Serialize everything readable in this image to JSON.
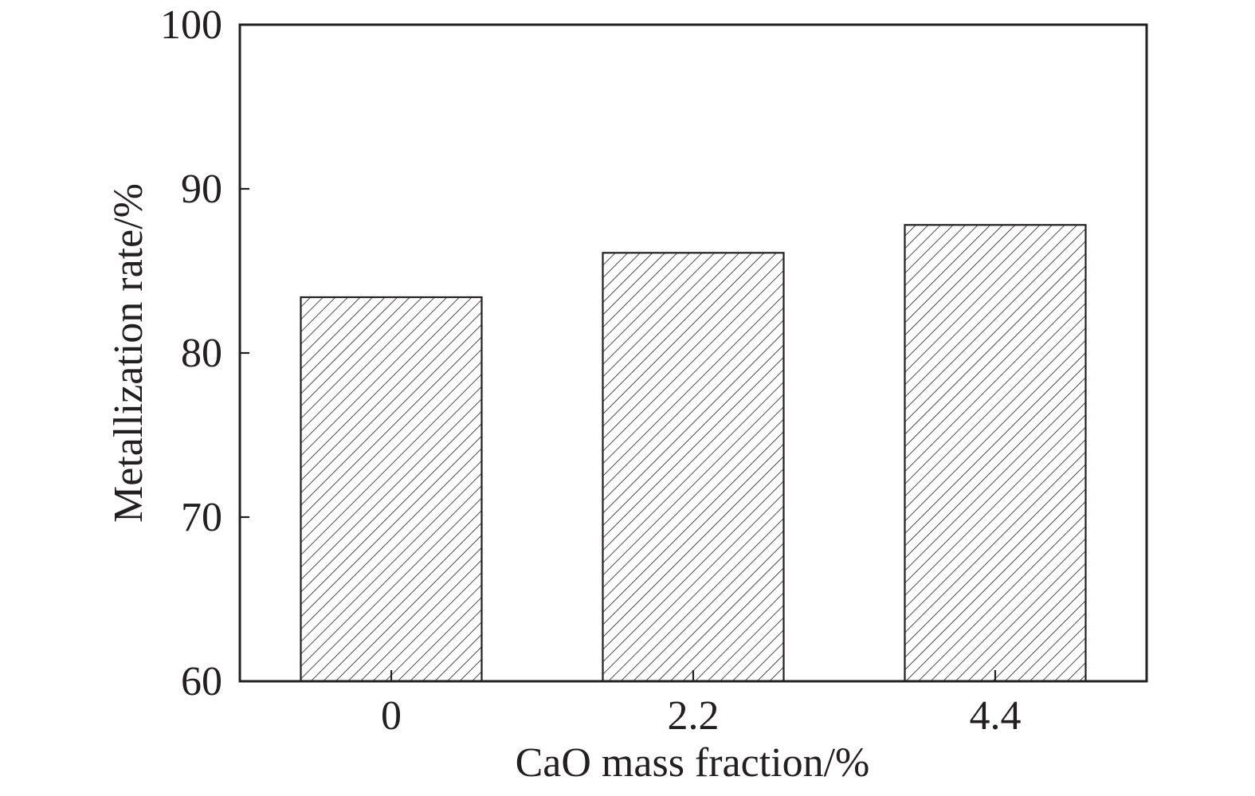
{
  "chart_data": {
    "type": "bar",
    "title": "",
    "xlabel": "CaO mass fraction/%",
    "ylabel": "Metallization rate/%",
    "categories": [
      "0",
      "2.2",
      "4.4"
    ],
    "values": [
      83.4,
      86.1,
      87.8
    ],
    "ylim": [
      60,
      100
    ],
    "yticks": [
      60,
      70,
      80,
      90,
      100
    ],
    "ytick_labels": [
      "60",
      "70",
      "80",
      "90",
      "100"
    ],
    "grid": false,
    "legend": "none",
    "bar_fill": "diagonal-hatch",
    "colors": {
      "stroke": "#231f20",
      "background": "#ffffff"
    }
  }
}
